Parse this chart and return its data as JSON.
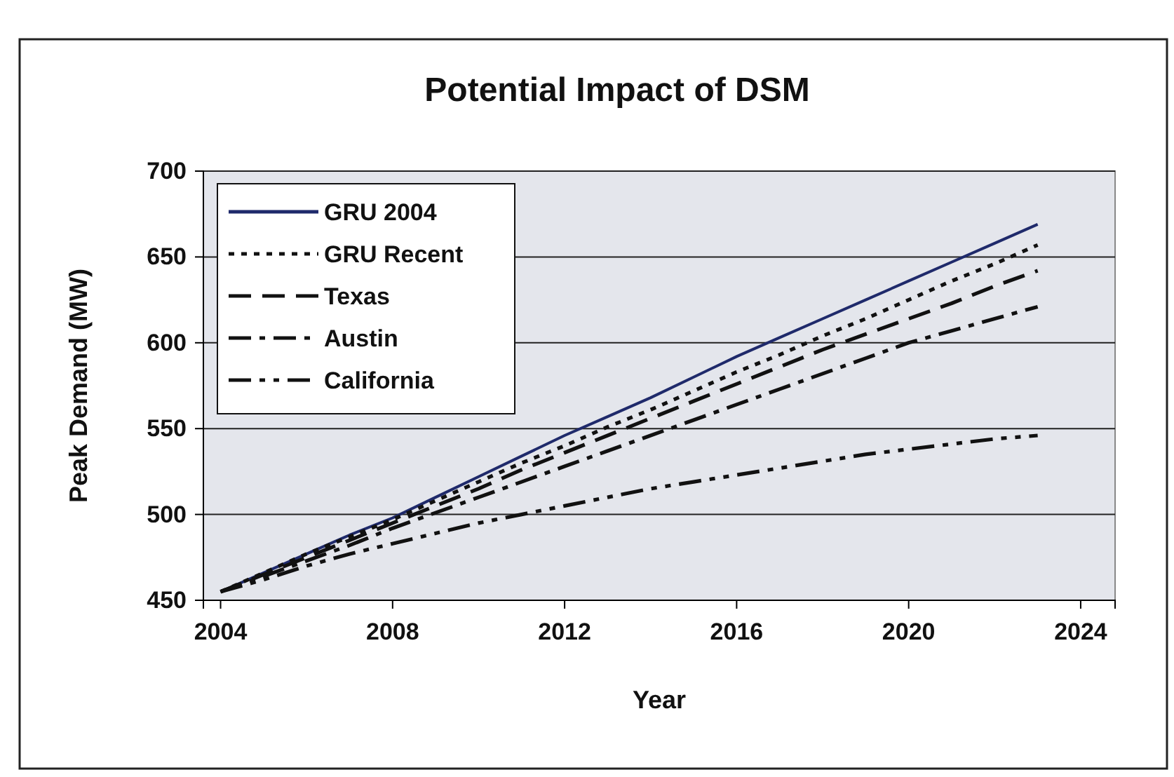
{
  "chart_data": {
    "type": "line",
    "title": "Potential Impact of DSM",
    "xlabel": "Year",
    "ylabel": "Peak Demand (MW)",
    "x": [
      2004,
      2005,
      2006,
      2007,
      2008,
      2009,
      2010,
      2011,
      2012,
      2013,
      2014,
      2015,
      2016,
      2017,
      2018,
      2019,
      2020,
      2021,
      2022,
      2023
    ],
    "series": [
      {
        "name": "GRU 2004",
        "color": "#1f2a6b",
        "line_style": "solid",
        "values": [
          455,
          466,
          477,
          488,
          498,
          510,
          522,
          534,
          546,
          557,
          568,
          580,
          592,
          603,
          614,
          625,
          636,
          647,
          658,
          669
        ]
      },
      {
        "name": "GRU Recent",
        "color": "#111111",
        "line_style": "dotted",
        "values": [
          455,
          466,
          477,
          487,
          497,
          508,
          519,
          530,
          540,
          551,
          561,
          572,
          583,
          593,
          604,
          614,
          625,
          636,
          646,
          657
        ]
      },
      {
        "name": "Texas",
        "color": "#111111",
        "line_style": "dashed",
        "values": [
          455,
          465,
          475,
          485,
          495,
          505,
          515,
          526,
          536,
          546,
          556,
          566,
          576,
          586,
          596,
          605,
          614,
          623,
          633,
          642
        ]
      },
      {
        "name": "Austin",
        "color": "#111111",
        "line_style": "dashdot",
        "values": [
          455,
          464,
          473,
          482,
          492,
          501,
          510,
          519,
          528,
          537,
          546,
          555,
          564,
          573,
          582,
          591,
          600,
          607,
          614,
          621
        ]
      },
      {
        "name": "California",
        "color": "#111111",
        "line_style": "dashdotdot",
        "values": [
          455,
          462,
          470,
          477,
          483,
          489,
          495,
          500,
          505,
          510,
          515,
          519,
          523,
          527,
          531,
          535,
          538,
          541,
          544,
          546
        ]
      }
    ],
    "xlim": [
      2003.6,
      2024.8
    ],
    "xticks": [
      2004,
      2008,
      2012,
      2016,
      2020,
      2024
    ],
    "ylim": [
      450,
      700
    ],
    "yticks": [
      450,
      500,
      550,
      600,
      650,
      700
    ],
    "grid": "y",
    "legend": "top left",
    "marker": "none"
  }
}
